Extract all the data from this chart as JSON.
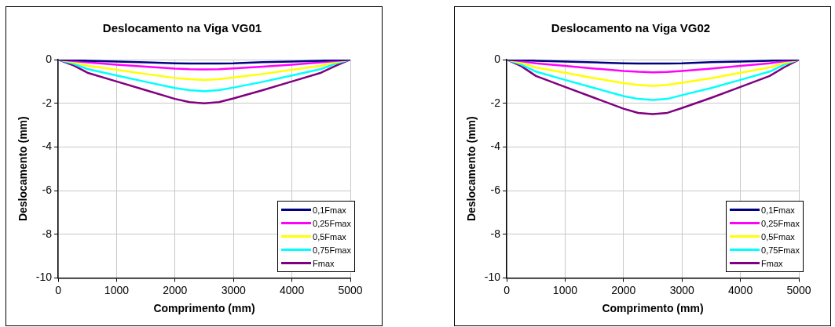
{
  "chart_data": [
    {
      "type": "line",
      "title": "Deslocamento na Viga VG01",
      "xlabel": "Comprimento (mm)",
      "ylabel": "Deslocamento (mm)",
      "x": [
        0,
        250,
        500,
        1000,
        1500,
        2000,
        2250,
        2500,
        2750,
        3000,
        3500,
        4000,
        4500,
        4750,
        5000
      ],
      "xlim": [
        0,
        5000
      ],
      "xticks": [
        0,
        1000,
        2000,
        3000,
        4000,
        5000
      ],
      "ylim": [
        -10,
        0
      ],
      "yticks": [
        -10,
        -8,
        -6,
        -4,
        -2,
        0
      ],
      "grid": true,
      "legend": "bottom right",
      "series": [
        {
          "name": "0,1Fmax",
          "color": "#000080",
          "values": [
            0,
            -0.02,
            -0.05,
            -0.09,
            -0.13,
            -0.17,
            -0.18,
            -0.18,
            -0.18,
            -0.17,
            -0.12,
            -0.09,
            -0.05,
            -0.02,
            0
          ]
        },
        {
          "name": "0,25Fmax",
          "color": "#ff00ff",
          "values": [
            0,
            -0.06,
            -0.13,
            -0.23,
            -0.32,
            -0.41,
            -0.44,
            -0.45,
            -0.44,
            -0.4,
            -0.32,
            -0.23,
            -0.13,
            -0.06,
            0
          ]
        },
        {
          "name": "0,5Fmax",
          "color": "#ffff00",
          "values": [
            0,
            -0.12,
            -0.28,
            -0.47,
            -0.66,
            -0.84,
            -0.9,
            -0.93,
            -0.9,
            -0.82,
            -0.66,
            -0.47,
            -0.28,
            -0.12,
            0
          ]
        },
        {
          "name": "0,75Fmax",
          "color": "#00ffff",
          "values": [
            0,
            -0.18,
            -0.43,
            -0.73,
            -1.02,
            -1.3,
            -1.4,
            -1.45,
            -1.4,
            -1.28,
            -1.02,
            -0.73,
            -0.43,
            -0.18,
            0
          ]
        },
        {
          "name": "Fmax",
          "color": "#800080",
          "values": [
            0,
            -0.25,
            -0.6,
            -1.0,
            -1.4,
            -1.8,
            -1.95,
            -2.0,
            -1.95,
            -1.78,
            -1.4,
            -1.0,
            -0.6,
            -0.28,
            0
          ]
        }
      ]
    },
    {
      "type": "line",
      "title": "Deslocamento na Viga VG02",
      "xlabel": "Comprimento (mm)",
      "ylabel": "Deslocamento (mm)",
      "x": [
        0,
        250,
        500,
        1000,
        1500,
        2000,
        2250,
        2500,
        2750,
        3000,
        3500,
        4000,
        4500,
        4750,
        5000
      ],
      "xlim": [
        0,
        5000
      ],
      "xticks": [
        0,
        1000,
        2000,
        3000,
        4000,
        5000
      ],
      "ylim": [
        -10,
        0
      ],
      "yticks": [
        -10,
        -8,
        -6,
        -4,
        -2,
        0
      ],
      "grid": true,
      "legend": "bottom right",
      "series": [
        {
          "name": "0,1Fmax",
          "color": "#000080",
          "values": [
            0,
            -0.02,
            -0.05,
            -0.09,
            -0.13,
            -0.17,
            -0.18,
            -0.18,
            -0.18,
            -0.17,
            -0.12,
            -0.09,
            -0.05,
            -0.02,
            0
          ]
        },
        {
          "name": "0,25Fmax",
          "color": "#ff00ff",
          "values": [
            0,
            -0.07,
            -0.17,
            -0.29,
            -0.41,
            -0.52,
            -0.56,
            -0.58,
            -0.57,
            -0.52,
            -0.41,
            -0.29,
            -0.17,
            -0.07,
            0
          ]
        },
        {
          "name": "0,5Fmax",
          "color": "#ffff00",
          "values": [
            0,
            -0.15,
            -0.36,
            -0.6,
            -0.85,
            -1.08,
            -1.16,
            -1.2,
            -1.16,
            -1.06,
            -0.85,
            -0.6,
            -0.36,
            -0.15,
            0
          ]
        },
        {
          "name": "0,75Fmax",
          "color": "#00ffff",
          "values": [
            0,
            -0.23,
            -0.55,
            -0.93,
            -1.3,
            -1.67,
            -1.8,
            -1.85,
            -1.8,
            -1.63,
            -1.3,
            -0.93,
            -0.55,
            -0.23,
            0
          ]
        },
        {
          "name": "Fmax",
          "color": "#800080",
          "values": [
            0,
            -0.3,
            -0.75,
            -1.25,
            -1.75,
            -2.25,
            -2.44,
            -2.5,
            -2.44,
            -2.22,
            -1.75,
            -1.25,
            -0.75,
            -0.35,
            0
          ]
        }
      ]
    }
  ]
}
